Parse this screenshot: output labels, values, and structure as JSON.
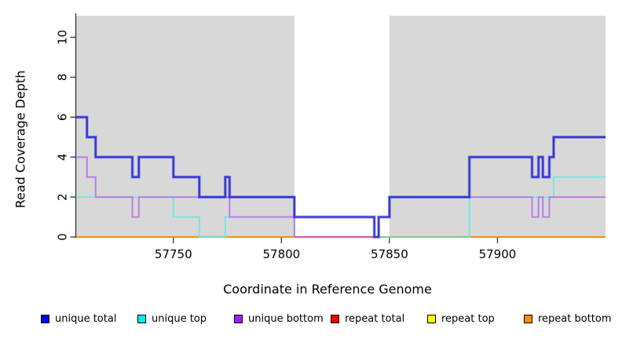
{
  "figure": {
    "xlabel": "Coordinate in Reference Genome",
    "ylabel": "Read Coverage Depth"
  },
  "chart_data": {
    "type": "line",
    "subtype": "step-coverage-plot",
    "title": "",
    "xlabel": "Coordinate in Reference Genome",
    "ylabel": "Read Coverage Depth",
    "xlim": [
      57705,
      57950
    ],
    "ylim": [
      0,
      11.2
    ],
    "x_ticks": [
      57750,
      57800,
      57850,
      57900
    ],
    "y_ticks": [
      0,
      2,
      4,
      6,
      8,
      10
    ],
    "grid": false,
    "legend_position": "bottom",
    "shade_color": "#d8d8d8",
    "shaded_regions": [
      [
        57705,
        57806
      ],
      [
        57850,
        57950
      ]
    ],
    "series": [
      {
        "name": "unique total",
        "color": "#0000EE",
        "line_color": "#3434d8",
        "width": 2.2,
        "halo": true,
        "skip_zero": false,
        "steps": [
          [
            57705,
            6
          ],
          [
            57710,
            5
          ],
          [
            57714,
            4
          ],
          [
            57731,
            3
          ],
          [
            57734,
            4
          ],
          [
            57750,
            3
          ],
          [
            57762,
            2
          ],
          [
            57774,
            3
          ],
          [
            57776,
            2
          ],
          [
            57806,
            1
          ],
          [
            57843,
            0
          ],
          [
            57845,
            1
          ],
          [
            57850,
            2
          ],
          [
            57887,
            4
          ],
          [
            57916,
            3
          ],
          [
            57919,
            4
          ],
          [
            57921,
            3
          ],
          [
            57924,
            4
          ],
          [
            57926,
            5
          ]
        ]
      },
      {
        "name": "unique top",
        "color": "#00EEEE",
        "line_color": "#7ae4e4",
        "width": 2,
        "halo": false,
        "skip_zero": false,
        "steps": [
          [
            57705,
            2
          ],
          [
            57750,
            1
          ],
          [
            57762,
            0
          ],
          [
            57774,
            1
          ],
          [
            57806,
            0
          ],
          [
            57887,
            2
          ],
          [
            57926,
            3
          ]
        ]
      },
      {
        "name": "unique bottom",
        "color": "#A020F0",
        "line_color": "#b77fe3",
        "width": 2,
        "halo": false,
        "skip_zero": true,
        "steps": [
          [
            57705,
            4
          ],
          [
            57710,
            3
          ],
          [
            57714,
            2
          ],
          [
            57731,
            1
          ],
          [
            57734,
            2
          ],
          [
            57776,
            1
          ],
          [
            57806,
            0
          ],
          [
            57845,
            1
          ],
          [
            57850,
            2
          ],
          [
            57916,
            1
          ],
          [
            57919,
            2
          ],
          [
            57921,
            1
          ],
          [
            57924,
            2
          ]
        ]
      },
      {
        "name": "repeat total",
        "color": "#EE0000",
        "line_color": "#EE0000",
        "width": 2,
        "halo": false,
        "skip_zero": false,
        "steps": [
          [
            57705,
            0
          ]
        ]
      },
      {
        "name": "repeat top",
        "color": "#FFFF00",
        "line_color": "#FFFF00",
        "width": 2,
        "halo": false,
        "skip_zero": false,
        "steps": [
          [
            57705,
            0
          ]
        ]
      },
      {
        "name": "repeat bottom",
        "color": "#FF8C00",
        "line_color": "#FF8C00",
        "width": 2,
        "halo": false,
        "skip_zero": false,
        "steps": [
          [
            57705,
            0
          ]
        ]
      }
    ],
    "baseline_blend_segments": [
      {
        "from": 57762,
        "to": 57774,
        "color": "#7fd3bd"
      },
      {
        "from": 57806,
        "to": 57843,
        "color": "#d85a9b"
      },
      {
        "from": 57845,
        "to": 57887,
        "color": "#85ca96"
      }
    ],
    "legend_entries": [
      "unique total",
      "unique top",
      "unique bottom",
      "repeat total",
      "repeat top",
      "repeat bottom"
    ]
  }
}
